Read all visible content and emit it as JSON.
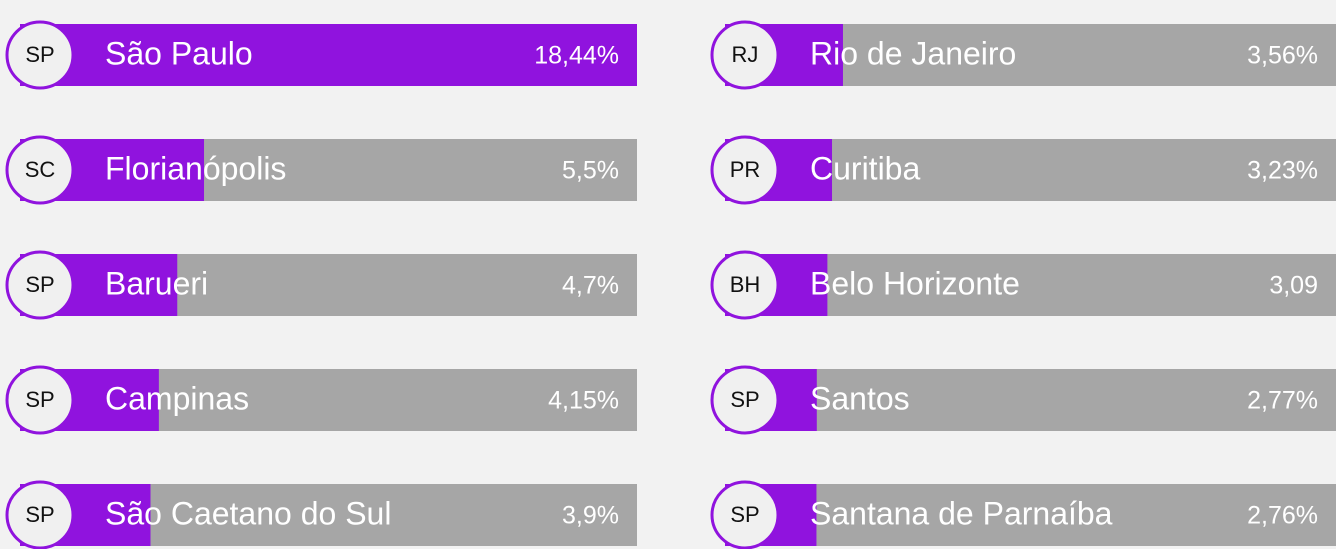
{
  "chart_data": {
    "type": "bar",
    "categories": [
      "São Paulo",
      "Florianópolis",
      "Barueri",
      "Campinas",
      "São Caetano do Sul",
      "Rio de Janeiro",
      "Curitiba",
      "Belo Horizonte",
      "Santos",
      "Santana de Parnaíba"
    ],
    "states": [
      "SP",
      "SC",
      "SP",
      "SP",
      "SP",
      "RJ",
      "PR",
      "BH",
      "SP",
      "SP"
    ],
    "values": [
      18.44,
      5.5,
      4.7,
      4.15,
      3.9,
      3.56,
      3.23,
      3.09,
      2.77,
      2.76
    ],
    "value_labels": [
      "18,44%",
      "5,5%",
      "4,7%",
      "4,15%",
      "3,9%",
      "3,56%",
      "3,23%",
      "3,09",
      "2,77%",
      "2,76%"
    ],
    "color": "#9013de",
    "track_color": "#a6a6a6",
    "xlim": [
      0,
      18.44
    ]
  }
}
